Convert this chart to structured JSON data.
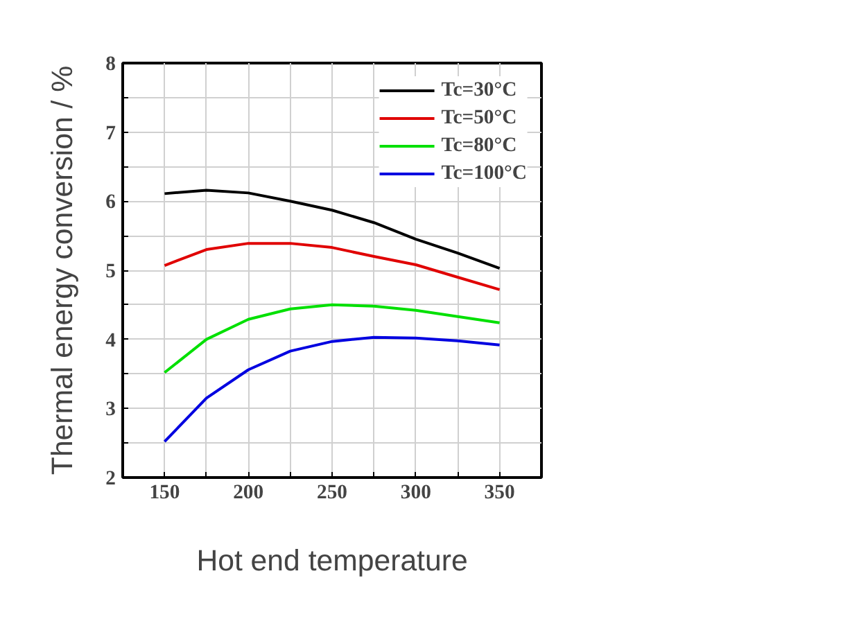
{
  "chart_data": {
    "type": "line",
    "xlabel": "Hot end temperature",
    "ylabel": "Thermal energy conversion / %",
    "x": [
      150,
      175,
      200,
      225,
      250,
      275,
      300,
      325,
      350
    ],
    "series": [
      {
        "name": "Tc=30°C",
        "color": "#000000",
        "values": [
          6.11,
          6.16,
          6.12,
          6.0,
          5.87,
          5.69,
          5.45,
          5.25,
          5.03
        ]
      },
      {
        "name": "Tc=50°C",
        "color": "#e00000",
        "values": [
          5.07,
          5.3,
          5.39,
          5.39,
          5.33,
          5.2,
          5.08,
          4.9,
          4.72
        ]
      },
      {
        "name": "Tc=80°C",
        "color": "#00e000",
        "values": [
          3.52,
          4.0,
          4.29,
          4.44,
          4.5,
          4.48,
          4.42,
          4.33,
          4.24
        ]
      },
      {
        "name": "Tc=100°C",
        "color": "#0000e0",
        "values": [
          2.52,
          3.15,
          3.56,
          3.83,
          3.97,
          4.03,
          4.02,
          3.98,
          3.92
        ]
      }
    ],
    "xlim": [
      125,
      375
    ],
    "xticks": [
      150,
      {
        "value": 175,
        "label": null
      },
      200,
      {
        "value": 225,
        "label": null
      },
      250,
      {
        "value": 275,
        "label": null
      },
      300,
      {
        "value": 325,
        "label": null
      },
      350
    ],
    "ylim": [
      2,
      8
    ],
    "yticks": [
      2,
      {
        "value": 2.5,
        "label": null
      },
      3,
      {
        "value": 3.5,
        "label": null
      },
      4,
      {
        "value": 4.5,
        "label": null
      },
      5,
      {
        "value": 5.5,
        "label": null
      },
      6,
      {
        "value": 6.5,
        "label": null
      },
      7,
      {
        "value": 7.5,
        "label": null
      },
      8
    ],
    "grid": true,
    "legend": "top right",
    "marker": "none",
    "line_style": "solid"
  }
}
